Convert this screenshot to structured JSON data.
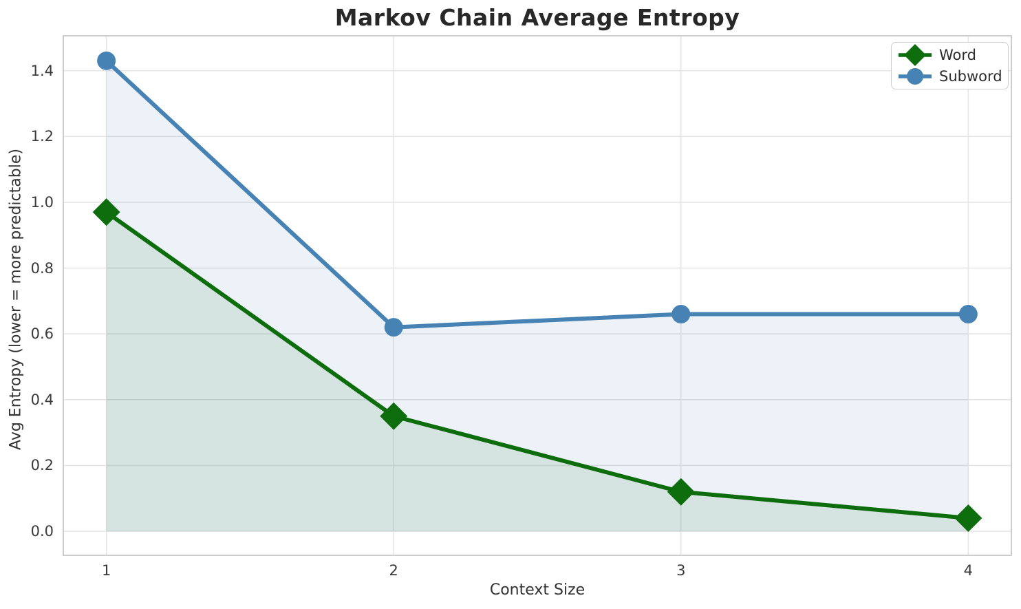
{
  "chart_data": {
    "type": "line",
    "title": "Markov Chain Average Entropy",
    "xlabel": "Context Size",
    "ylabel": "Avg Entropy (lower = more predictable)",
    "x": [
      1,
      2,
      3,
      4
    ],
    "series": [
      {
        "name": "Word",
        "marker": "diamond",
        "color": "#0d6d0d",
        "values": [
          0.97,
          0.35,
          0.12,
          0.04
        ]
      },
      {
        "name": "Subword",
        "marker": "circle",
        "color": "#4682b4",
        "values": [
          1.43,
          0.62,
          0.66,
          0.66
        ]
      }
    ],
    "fill_to_zero": true,
    "fill_opacity": 0.1,
    "xticks": [
      1,
      2,
      3,
      4
    ],
    "xtick_labels": [
      "1",
      "2",
      "3",
      "4"
    ],
    "yticks": [
      0.0,
      0.2,
      0.4,
      0.6,
      0.8,
      1.0,
      1.2,
      1.4
    ],
    "ytick_labels": [
      "0.0",
      "0.2",
      "0.4",
      "0.6",
      "0.8",
      "1.0",
      "1.2",
      "1.4"
    ],
    "xlim": [
      0.85,
      4.15
    ],
    "ylim": [
      -0.073,
      1.506
    ],
    "grid": true,
    "legend_position": "upper right"
  }
}
